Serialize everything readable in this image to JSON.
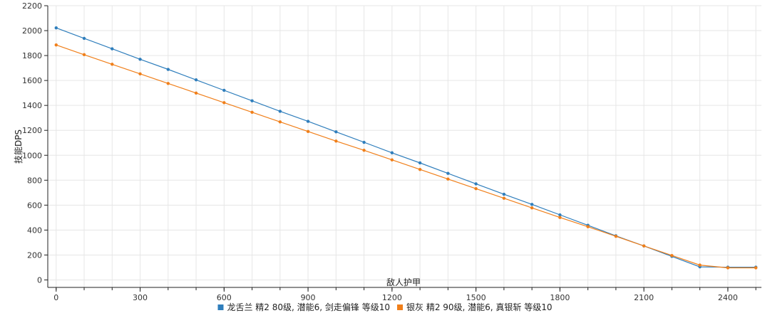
{
  "chart_data": {
    "type": "line",
    "title": "",
    "xlabel": "敌人护甲",
    "ylabel": "技能DPS",
    "xlim": [
      -30,
      2520
    ],
    "ylim": [
      -60,
      2200
    ],
    "x_ticks": [
      0,
      300,
      600,
      900,
      1200,
      1500,
      1800,
      2100,
      2400
    ],
    "y_ticks": [
      0,
      200,
      400,
      600,
      800,
      1000,
      1200,
      1400,
      1600,
      1800,
      2000,
      2200
    ],
    "grid": true,
    "legend_position": "bottom-center",
    "x": [
      0,
      100,
      200,
      300,
      400,
      500,
      600,
      700,
      800,
      900,
      1000,
      1100,
      1200,
      1300,
      1400,
      1500,
      1600,
      1700,
      1800,
      1900,
      2000,
      2100,
      2200,
      2300,
      2400,
      2500
    ],
    "series": [
      {
        "name": "龙舌兰 精2 80级, 潜能6, 剑走偏锋 等级10",
        "color": "#2f7ebc",
        "values": [
          2022,
          1938,
          1854,
          1770,
          1689,
          1605,
          1521,
          1437,
          1353,
          1272,
          1188,
          1104,
          1020,
          939,
          855,
          771,
          687,
          606,
          522,
          438,
          354,
          273,
          189,
          105,
          102,
          102
        ]
      },
      {
        "name": "银灰 精2 90级, 潜能6, 真银斩 等级10",
        "color": "#f07f1a",
        "values": [
          1885,
          1807,
          1730,
          1653,
          1576,
          1499,
          1422,
          1345,
          1268,
          1191,
          1114,
          1040,
          963,
          886,
          809,
          732,
          655,
          578,
          501,
          427,
          350,
          273,
          196,
          119,
          97,
          97
        ]
      }
    ]
  }
}
